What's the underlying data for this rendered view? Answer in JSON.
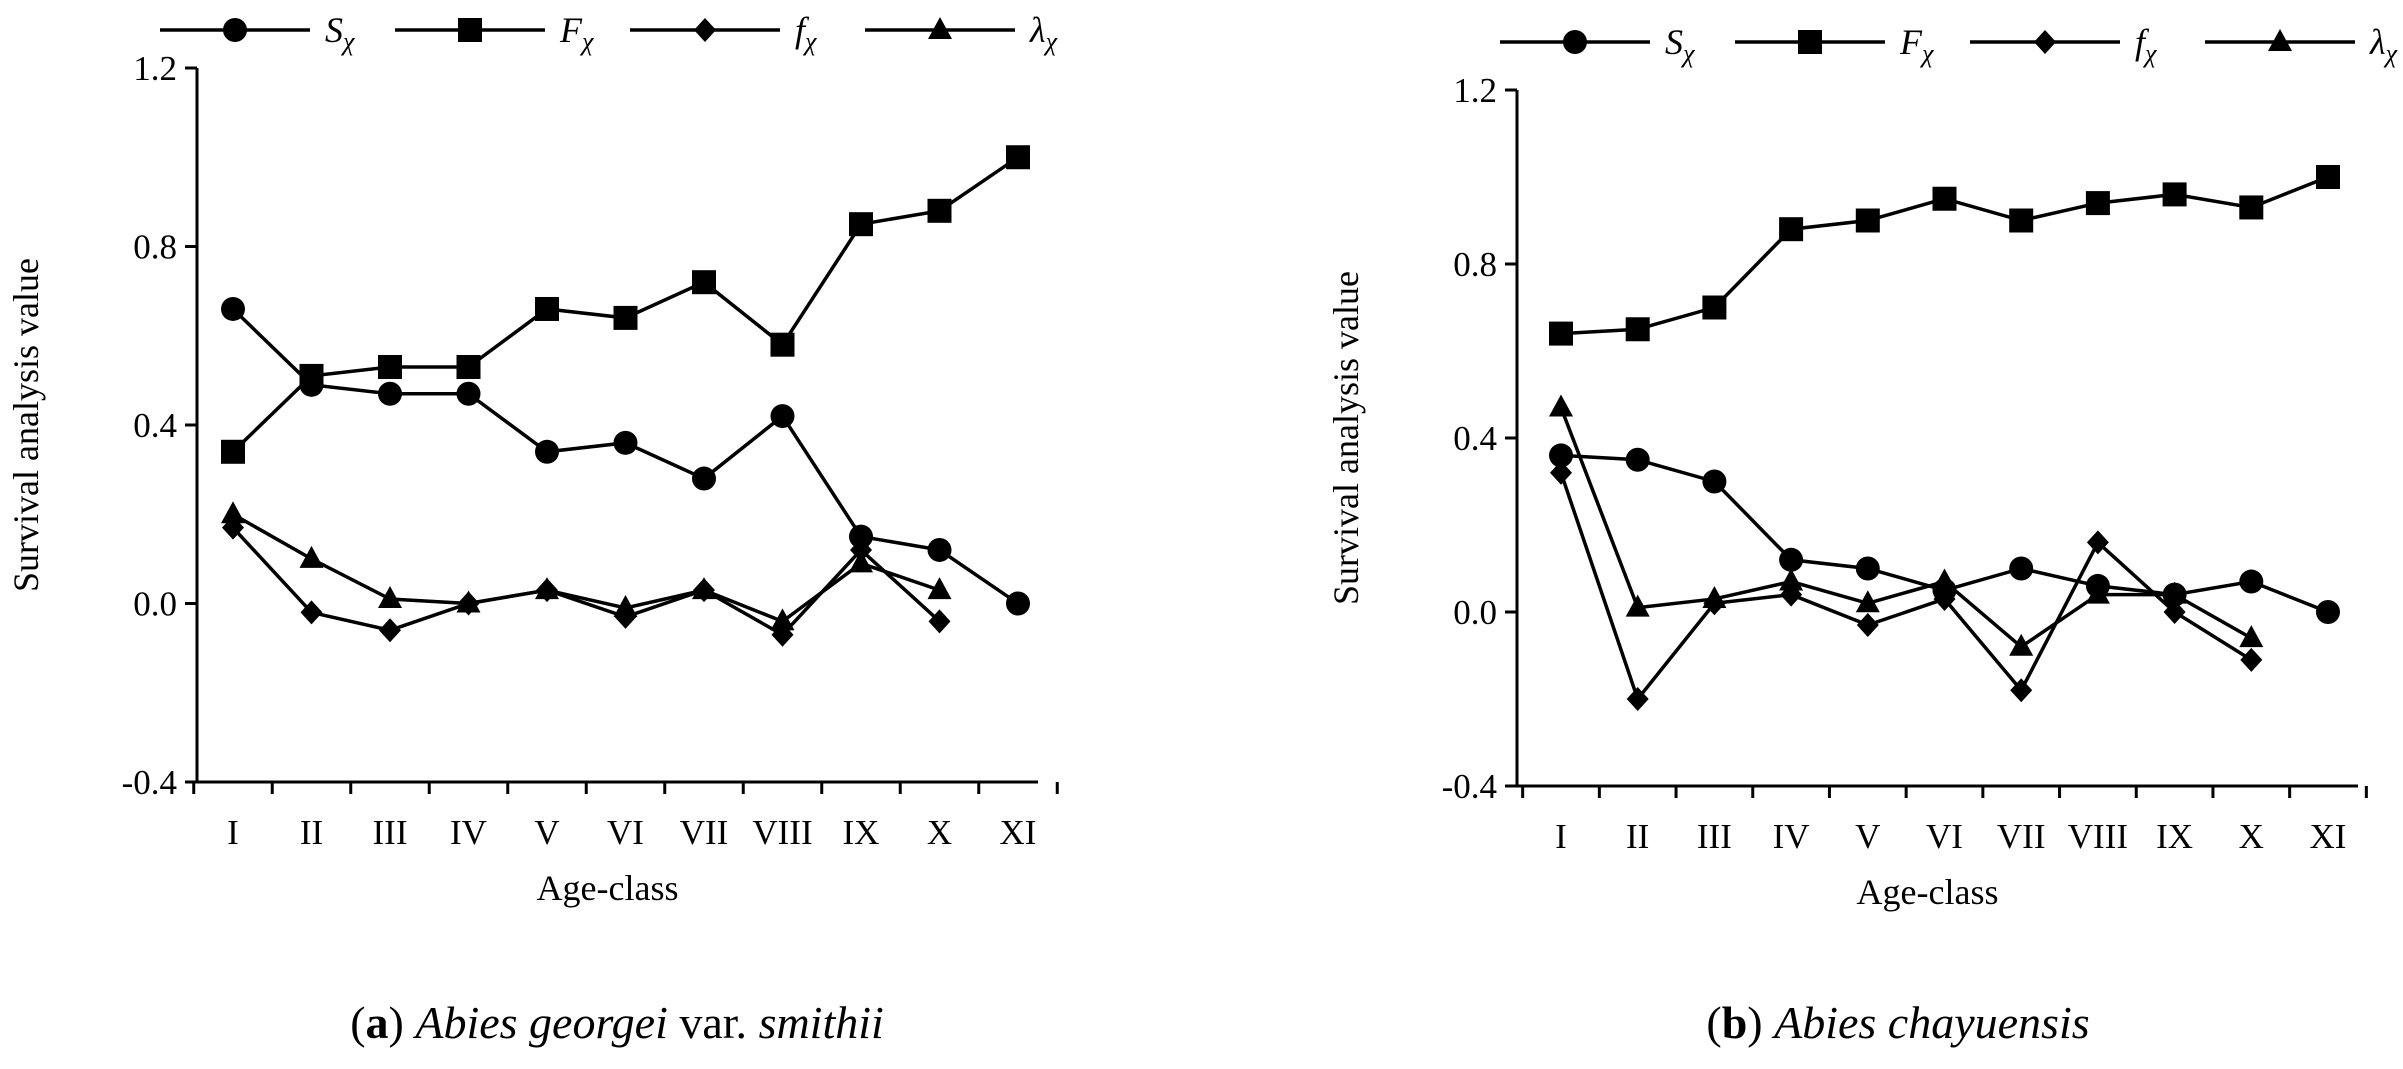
{
  "chart_data": [
    {
      "type": "line",
      "caption": {
        "letter": "a",
        "species": "Abies georgei",
        "connector": " var. ",
        "variety": "smithii"
      },
      "xlabel": "Age-class",
      "ylabel": "Survival analysis value",
      "ylim": [
        -0.4,
        1.2
      ],
      "yticks": [
        "-0.4",
        "0.0",
        "0.4",
        "0.8",
        "1.2"
      ],
      "categories": [
        "I",
        "II",
        "III",
        "IV",
        "V",
        "VI",
        "VII",
        "VIII",
        "IX",
        "X",
        "XI"
      ],
      "legend_position": "top",
      "grid": false,
      "series": [
        {
          "name": "Sχ",
          "base": "S",
          "sub": "χ",
          "marker": "circle",
          "values": [
            0.66,
            0.49,
            0.47,
            0.47,
            0.34,
            0.36,
            0.28,
            0.42,
            0.15,
            0.12,
            0.0
          ]
        },
        {
          "name": "Fχ",
          "base": "F",
          "sub": "χ",
          "marker": "square",
          "values": [
            0.34,
            0.51,
            0.53,
            0.53,
            0.66,
            0.64,
            0.72,
            0.58,
            0.85,
            0.88,
            1.0
          ]
        },
        {
          "name": "fχ",
          "base": "f",
          "sub": "χ",
          "marker": "diamond",
          "values": [
            0.17,
            -0.02,
            -0.06,
            0.0,
            0.03,
            -0.03,
            0.03,
            -0.07,
            0.12,
            -0.04,
            null
          ]
        },
        {
          "name": "λχ",
          "base": "λ",
          "sub": "χ",
          "marker": "triangle",
          "values": [
            0.2,
            0.1,
            0.01,
            0.0,
            0.03,
            -0.01,
            0.03,
            -0.04,
            0.09,
            0.03,
            null
          ]
        }
      ]
    },
    {
      "type": "line",
      "caption": {
        "letter": "b",
        "species": "Abies chayuensis",
        "connector": "",
        "variety": ""
      },
      "xlabel": "Age-class",
      "ylabel": "Survival analysis value",
      "ylim": [
        -0.4,
        1.2
      ],
      "yticks": [
        "-0.4",
        "0.0",
        "0.4",
        "0.8",
        "1.2"
      ],
      "categories": [
        "I",
        "II",
        "III",
        "IV",
        "V",
        "VI",
        "VII",
        "VIII",
        "IX",
        "X",
        "XI"
      ],
      "legend_position": "top",
      "grid": false,
      "series": [
        {
          "name": "Sχ",
          "base": "S",
          "sub": "χ",
          "marker": "circle",
          "values": [
            0.36,
            0.35,
            0.3,
            0.12,
            0.1,
            0.05,
            0.1,
            0.06,
            0.04,
            0.07,
            0.0
          ]
        },
        {
          "name": "Fχ",
          "base": "F",
          "sub": "χ",
          "marker": "square",
          "values": [
            0.64,
            0.65,
            0.7,
            0.88,
            0.9,
            0.95,
            0.9,
            0.94,
            0.96,
            0.93,
            1.0
          ]
        },
        {
          "name": "fχ",
          "base": "f",
          "sub": "χ",
          "marker": "diamond",
          "values": [
            0.32,
            -0.2,
            0.02,
            0.04,
            -0.03,
            0.03,
            -0.18,
            0.16,
            0.0,
            -0.11,
            null
          ]
        },
        {
          "name": "λχ",
          "base": "λ",
          "sub": "χ",
          "marker": "triangle",
          "values": [
            0.47,
            0.01,
            0.03,
            0.07,
            0.02,
            0.07,
            -0.08,
            0.04,
            0.04,
            -0.06,
            null
          ]
        }
      ]
    }
  ]
}
